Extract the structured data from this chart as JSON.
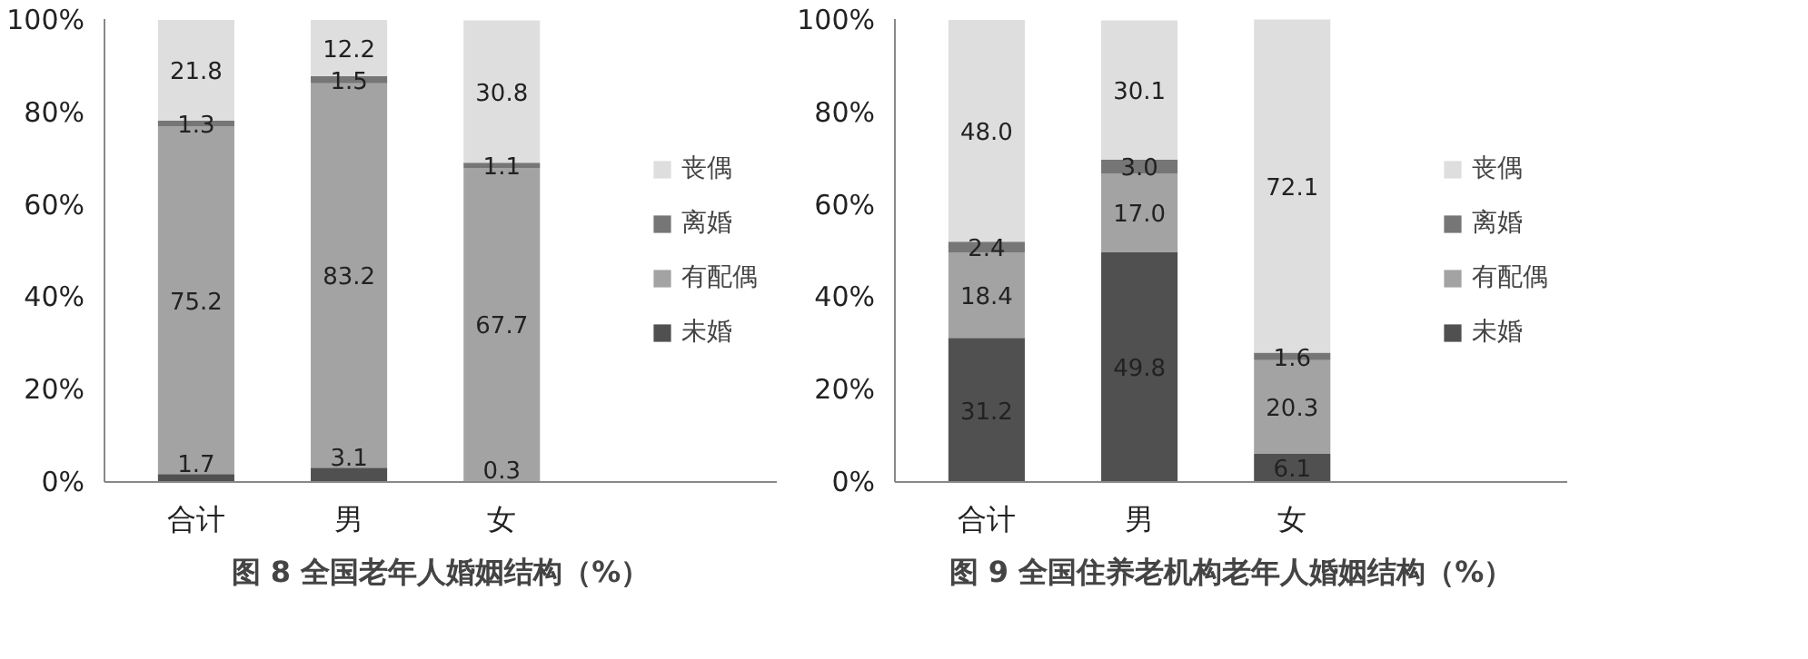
{
  "chart_data": [
    {
      "type": "bar",
      "stacked": true,
      "title": "图 8 全国老年人婚姻结构（%）",
      "categories": [
        "合计",
        "男",
        "女"
      ],
      "series": [
        {
          "name": "未婚",
          "color": "#505050",
          "values": [
            1.7,
            3.1,
            0.3
          ],
          "value_labels": [
            "1.7",
            "3.1",
            "0.3"
          ]
        },
        {
          "name": "有配偶",
          "color": "#a3a3a3",
          "values": [
            75.2,
            83.2,
            67.7
          ],
          "value_labels": [
            "75.2",
            "83.2",
            "67.7"
          ]
        },
        {
          "name": "离婚",
          "color": "#767676",
          "values": [
            1.3,
            1.5,
            1.1
          ],
          "value_labels": [
            "1.3",
            "1.5",
            "1.1"
          ]
        },
        {
          "name": "丧偶",
          "color": "#dedede",
          "values": [
            21.8,
            12.2,
            30.8
          ],
          "value_labels": [
            "21.8",
            "12.2",
            "30.8"
          ]
        }
      ],
      "ylim": [
        0,
        100.2
      ],
      "yticks": [
        {
          "value": 0,
          "label": "0%"
        },
        {
          "value": 20,
          "label": "20%"
        },
        {
          "value": 40,
          "label": "40%"
        },
        {
          "value": 60,
          "label": "60%"
        },
        {
          "value": 80,
          "label": "80%"
        },
        {
          "value": 100,
          "label": "100%"
        }
      ],
      "legend": "right",
      "grid": false
    },
    {
      "type": "bar",
      "stacked": true,
      "title": "图 9 全国住养老机构老年人婚姻结构（%）",
      "categories": [
        "合计",
        "男",
        "女"
      ],
      "series": [
        {
          "name": "未婚",
          "color": "#505050",
          "values": [
            31.2,
            49.8,
            6.1
          ],
          "value_labels": [
            "31.2",
            "49.8",
            "6.1"
          ]
        },
        {
          "name": "有配偶",
          "color": "#a3a3a3",
          "values": [
            18.4,
            17.0,
            20.3
          ],
          "value_labels": [
            "18.4",
            "17.0",
            "20.3"
          ]
        },
        {
          "name": "离婚",
          "color": "#767676",
          "values": [
            2.4,
            3.0,
            1.6
          ],
          "value_labels": [
            "2.4",
            "3.0",
            "1.6"
          ]
        },
        {
          "name": "丧偶",
          "color": "#dedede",
          "values": [
            48.0,
            30.1,
            72.1
          ],
          "value_labels": [
            "48.0",
            "30.1",
            "72.1"
          ]
        }
      ],
      "ylim": [
        0,
        100.2
      ],
      "yticks": [
        {
          "value": 0,
          "label": "0%"
        },
        {
          "value": 20,
          "label": "20%"
        },
        {
          "value": 40,
          "label": "40%"
        },
        {
          "value": 60,
          "label": "60%"
        },
        {
          "value": 80,
          "label": "80%"
        },
        {
          "value": 100,
          "label": "100%"
        }
      ],
      "legend": "right",
      "grid": false
    }
  ]
}
